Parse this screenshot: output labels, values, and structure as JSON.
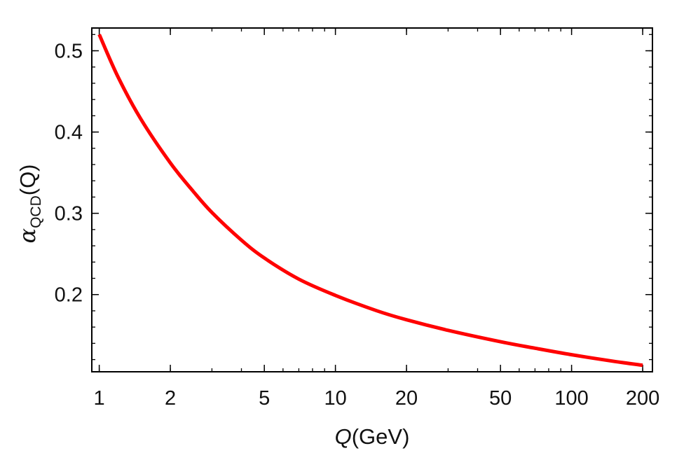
{
  "chart_data": {
    "type": "line",
    "title": "",
    "xlabel": {
      "var": "Q",
      "unit": "(GeV)"
    },
    "ylabel": {
      "symbol": "α",
      "sub": "QCD",
      "arg": "(Q)"
    },
    "x_scale": "log",
    "xlim": [
      0.93,
      220
    ],
    "ylim": [
      0.105,
      0.528
    ],
    "x_ticks": [
      1,
      2,
      5,
      10,
      20,
      50,
      100,
      200
    ],
    "x_tick_labels": [
      "1",
      "2",
      "5",
      "10",
      "20",
      "50",
      "100",
      "200"
    ],
    "y_ticks": [
      0.2,
      0.3,
      0.4,
      0.5
    ],
    "y_tick_labels": [
      "0.2",
      "0.3",
      "0.4",
      "0.5"
    ],
    "grid": false,
    "series": [
      {
        "color": "#ff0000",
        "x": [
          1,
          1.2,
          1.5,
          2,
          2.5,
          3,
          4,
          5,
          7,
          10,
          15,
          20,
          30,
          50,
          70,
          100,
          150,
          200
        ],
        "y": [
          0.52,
          0.468,
          0.416,
          0.362,
          0.327,
          0.301,
          0.267,
          0.245,
          0.219,
          0.199,
          0.18,
          0.169,
          0.156,
          0.142,
          0.134,
          0.126,
          0.118,
          0.113
        ]
      }
    ]
  }
}
